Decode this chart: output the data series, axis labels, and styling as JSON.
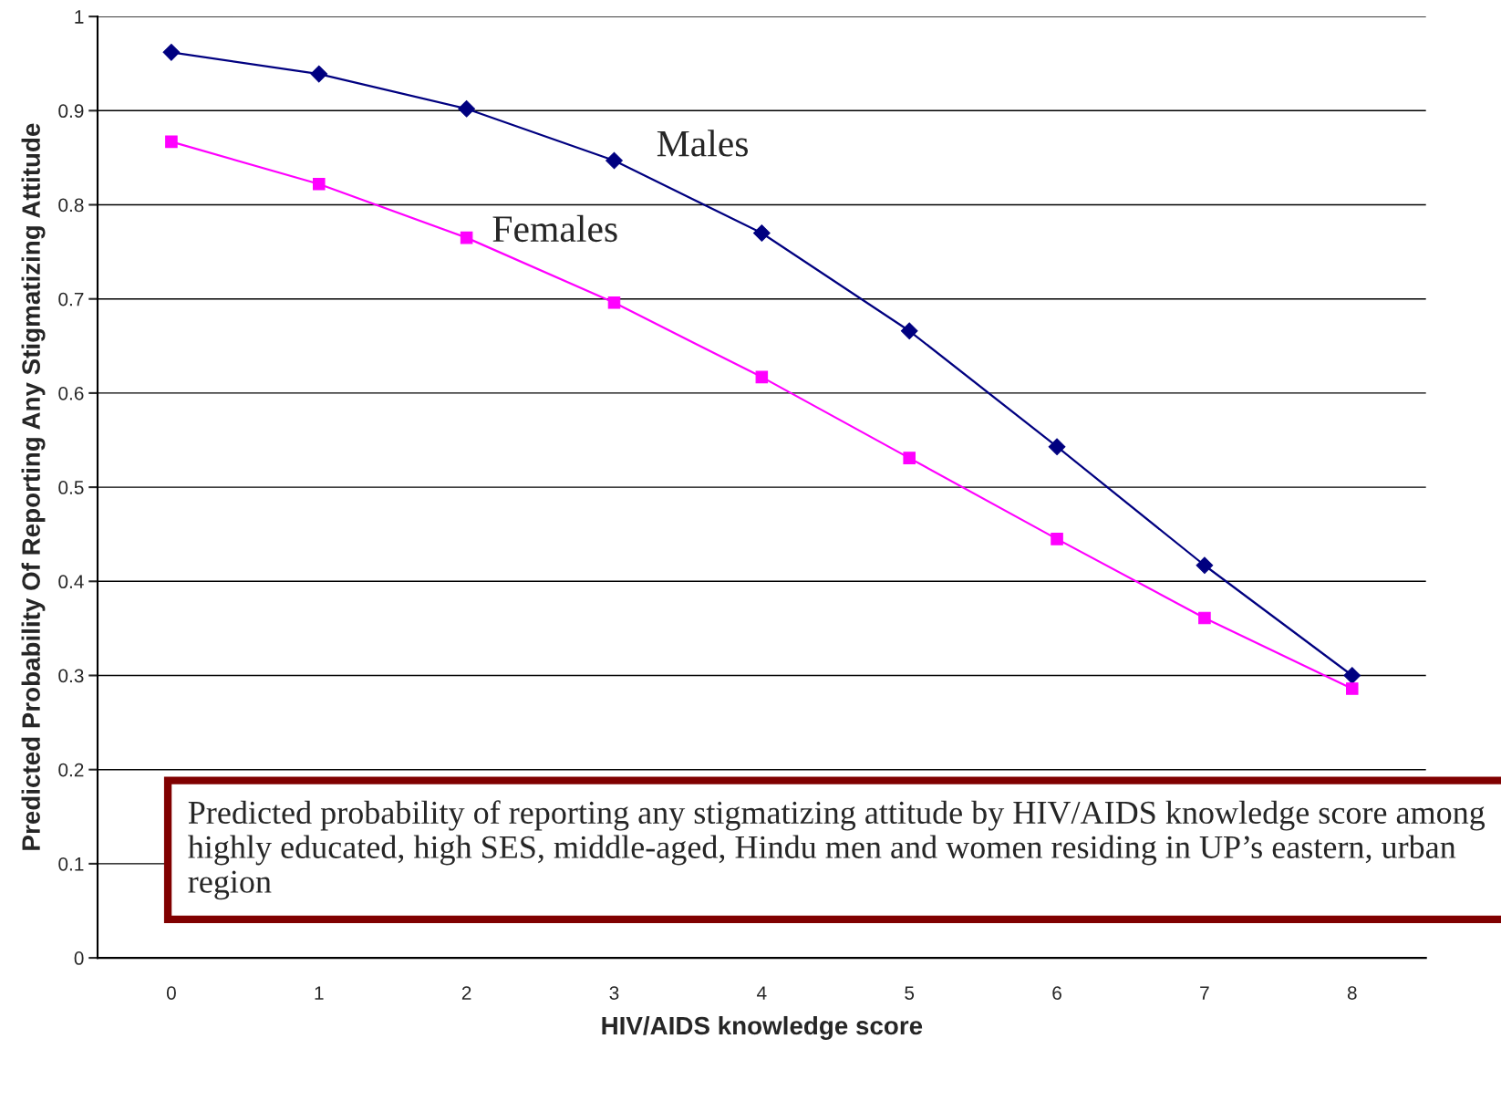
{
  "chart_data": {
    "type": "line",
    "xlabel": "HIV/AIDS knowledge score",
    "ylabel": "Predicted Probability Of Reporting Any Stigmatizing Attitude",
    "categories": [
      "0",
      "1",
      "2",
      "3",
      "4",
      "5",
      "6",
      "7",
      "8"
    ],
    "series": [
      {
        "name": "Males",
        "color": "#000080",
        "marker": "diamond",
        "values": [
          0.962,
          0.939,
          0.902,
          0.847,
          0.77,
          0.666,
          0.543,
          0.417,
          0.3
        ]
      },
      {
        "name": "Females",
        "color": "#ff00ff",
        "marker": "square",
        "values": [
          0.867,
          0.822,
          0.765,
          0.696,
          0.617,
          0.531,
          0.445,
          0.361,
          0.286
        ]
      }
    ],
    "ylim": [
      0,
      1
    ],
    "yticks": [
      0,
      0.1,
      0.2,
      0.3,
      0.4,
      0.5,
      0.6,
      0.7,
      0.8,
      0.9,
      1
    ],
    "grid": "y",
    "legend": false,
    "line_style": "solid",
    "annotations": [
      "Predicted probability of reporting any stigmatizing attitude by HIV/AIDS knowledge score among highly educated, high SES, middle-aged, Hindu men and women residing in UP’s eastern, urban region"
    ]
  }
}
